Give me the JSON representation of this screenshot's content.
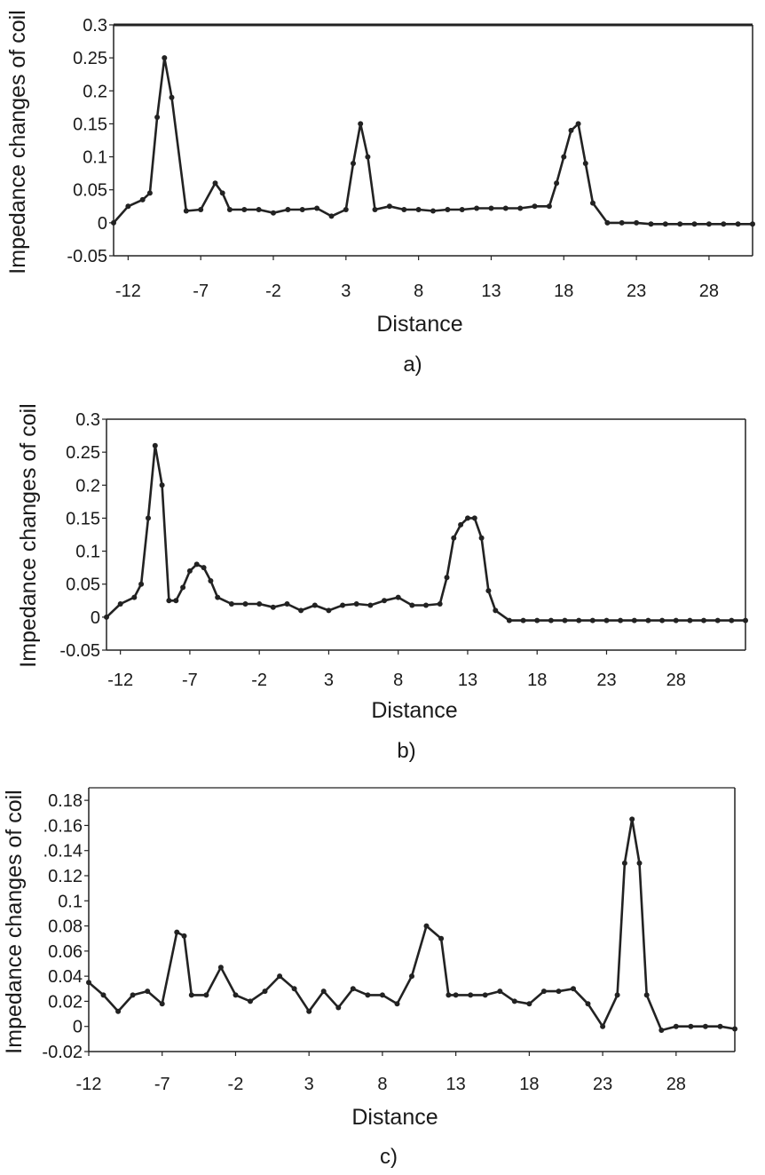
{
  "chart_data": [
    {
      "type": "line",
      "caption": "a)",
      "xlabel": "Distance",
      "ylabel": "Impedance changes of coil",
      "xlim": [
        -13,
        31
      ],
      "ylim": [
        -0.05,
        0.3
      ],
      "xticks": [
        -12,
        -7,
        -2,
        3,
        8,
        13,
        18,
        23,
        28
      ],
      "xtick_labels": [
        "-12",
        "-7",
        "-2",
        "3",
        "8",
        "13",
        "18",
        "23",
        "28"
      ],
      "yticks": [
        -0.05,
        0,
        0.05,
        0.1,
        0.15,
        0.2,
        0.25,
        0.3
      ],
      "ytick_labels": [
        "-0.05",
        "0",
        "0.05",
        "0.1",
        "0.15",
        "0.2",
        "0.25",
        "0.3"
      ],
      "grid": false,
      "series": [
        {
          "color": "#222222",
          "x": [
            -13,
            -12,
            -11,
            -10.5,
            -10,
            -9.5,
            -9,
            -8,
            -7,
            -6,
            -5.5,
            -5,
            -4,
            -3,
            -2,
            -1,
            0,
            1,
            2,
            3,
            3.5,
            4,
            4.5,
            5,
            6,
            7,
            8,
            9,
            10,
            11,
            12,
            13,
            14,
            15,
            16,
            17,
            17.5,
            18,
            18.5,
            19,
            19.5,
            20,
            21,
            22,
            23,
            24,
            25,
            26,
            27,
            28,
            29,
            30,
            31
          ],
          "y": [
            0.0,
            0.025,
            0.035,
            0.045,
            0.16,
            0.25,
            0.19,
            0.018,
            0.02,
            0.06,
            0.045,
            0.02,
            0.02,
            0.02,
            0.015,
            0.02,
            0.02,
            0.022,
            0.01,
            0.02,
            0.09,
            0.15,
            0.1,
            0.02,
            0.025,
            0.02,
            0.02,
            0.018,
            0.02,
            0.02,
            0.022,
            0.022,
            0.022,
            0.022,
            0.025,
            0.025,
            0.06,
            0.1,
            0.14,
            0.15,
            0.09,
            0.03,
            0.0,
            0.0,
            0.0,
            -0.002,
            -0.002,
            -0.002,
            -0.002,
            -0.002,
            -0.002,
            -0.002,
            -0.002
          ]
        }
      ]
    },
    {
      "type": "line",
      "caption": "b)",
      "xlabel": "Distance",
      "ylabel": "Impedance changes of coil",
      "xlim": [
        -13,
        33
      ],
      "ylim": [
        -0.05,
        0.3
      ],
      "xticks": [
        -12,
        -7,
        -2,
        3,
        8,
        13,
        18,
        23,
        28
      ],
      "xtick_labels": [
        "-12",
        "-7",
        "-2",
        "3",
        "8",
        "13",
        "18",
        "23",
        "28"
      ],
      "yticks": [
        -0.05,
        0,
        0.05,
        0.1,
        0.15,
        0.2,
        0.25,
        0.3
      ],
      "ytick_labels": [
        "-0.05",
        "0",
        "0.05",
        "0.1",
        "0.15",
        "0.2",
        "0.25",
        "0.3"
      ],
      "grid": false,
      "series": [
        {
          "color": "#222222",
          "x": [
            -13,
            -12,
            -11,
            -10.5,
            -10,
            -9.5,
            -9,
            -8.5,
            -8,
            -7.5,
            -7,
            -6.5,
            -6,
            -5.5,
            -5,
            -4,
            -3,
            -2,
            -1,
            0,
            1,
            2,
            3,
            4,
            5,
            6,
            7,
            8,
            9,
            10,
            11,
            11.5,
            12,
            12.5,
            13,
            13.5,
            14,
            14.5,
            15,
            16,
            17,
            18,
            19,
            20,
            21,
            22,
            23,
            24,
            25,
            26,
            27,
            28,
            29,
            30,
            31,
            32,
            33
          ],
          "y": [
            0.0,
            0.02,
            0.03,
            0.05,
            0.15,
            0.26,
            0.2,
            0.025,
            0.025,
            0.045,
            0.07,
            0.08,
            0.075,
            0.055,
            0.03,
            0.02,
            0.02,
            0.02,
            0.015,
            0.02,
            0.01,
            0.018,
            0.01,
            0.018,
            0.02,
            0.018,
            0.025,
            0.03,
            0.018,
            0.018,
            0.02,
            0.06,
            0.12,
            0.14,
            0.15,
            0.15,
            0.12,
            0.04,
            0.01,
            -0.005,
            -0.005,
            -0.005,
            -0.005,
            -0.005,
            -0.005,
            -0.005,
            -0.005,
            -0.005,
            -0.005,
            -0.005,
            -0.005,
            -0.005,
            -0.005,
            -0.005,
            -0.005,
            -0.005,
            -0.005
          ]
        }
      ]
    },
    {
      "type": "line",
      "caption": "c)",
      "xlabel": "Distance",
      "ylabel": "Impedance changes of coil",
      "xlim": [
        -12,
        32
      ],
      "ylim": [
        -0.02,
        0.19
      ],
      "xticks": [
        -12,
        -7,
        -2,
        3,
        8,
        13,
        18,
        23,
        28
      ],
      "xtick_labels": [
        "-12",
        "-7",
        "-2",
        "3",
        "8",
        "13",
        "18",
        "23",
        "28"
      ],
      "yticks": [
        -0.02,
        0,
        0.02,
        0.04,
        0.06,
        0.08,
        0.1,
        0.12,
        0.14,
        0.16,
        0.18
      ],
      "ytick_labels": [
        "-0.02",
        "0",
        "0.02",
        "0.04",
        "0.06",
        "0.08",
        "0.1",
        "0.12",
        ".0.14",
        ".0.16",
        "0.18"
      ],
      "grid": false,
      "series": [
        {
          "color": "#222222",
          "x": [
            -12,
            -11,
            -10,
            -9,
            -8,
            -7,
            -6,
            -5.5,
            -5,
            -4,
            -3,
            -2,
            -1,
            0,
            1,
            2,
            3,
            4,
            5,
            6,
            7,
            8,
            9,
            10,
            11,
            12,
            12.5,
            13,
            14,
            15,
            16,
            17,
            18,
            19,
            20,
            21,
            22,
            23,
            24,
            24.5,
            25,
            25.5,
            26,
            27,
            28,
            29,
            30,
            31,
            32
          ],
          "y": [
            0.035,
            0.025,
            0.012,
            0.025,
            0.028,
            0.018,
            0.075,
            0.072,
            0.025,
            0.025,
            0.047,
            0.025,
            0.02,
            0.028,
            0.04,
            0.03,
            0.012,
            0.028,
            0.015,
            0.03,
            0.025,
            0.025,
            0.018,
            0.04,
            0.08,
            0.07,
            0.025,
            0.025,
            0.025,
            0.025,
            0.028,
            0.02,
            0.018,
            0.028,
            0.028,
            0.03,
            0.018,
            0.0,
            0.025,
            0.13,
            0.165,
            0.13,
            0.025,
            -0.003,
            0.0,
            0.0,
            0.0,
            0.0,
            -0.002
          ]
        }
      ]
    }
  ]
}
